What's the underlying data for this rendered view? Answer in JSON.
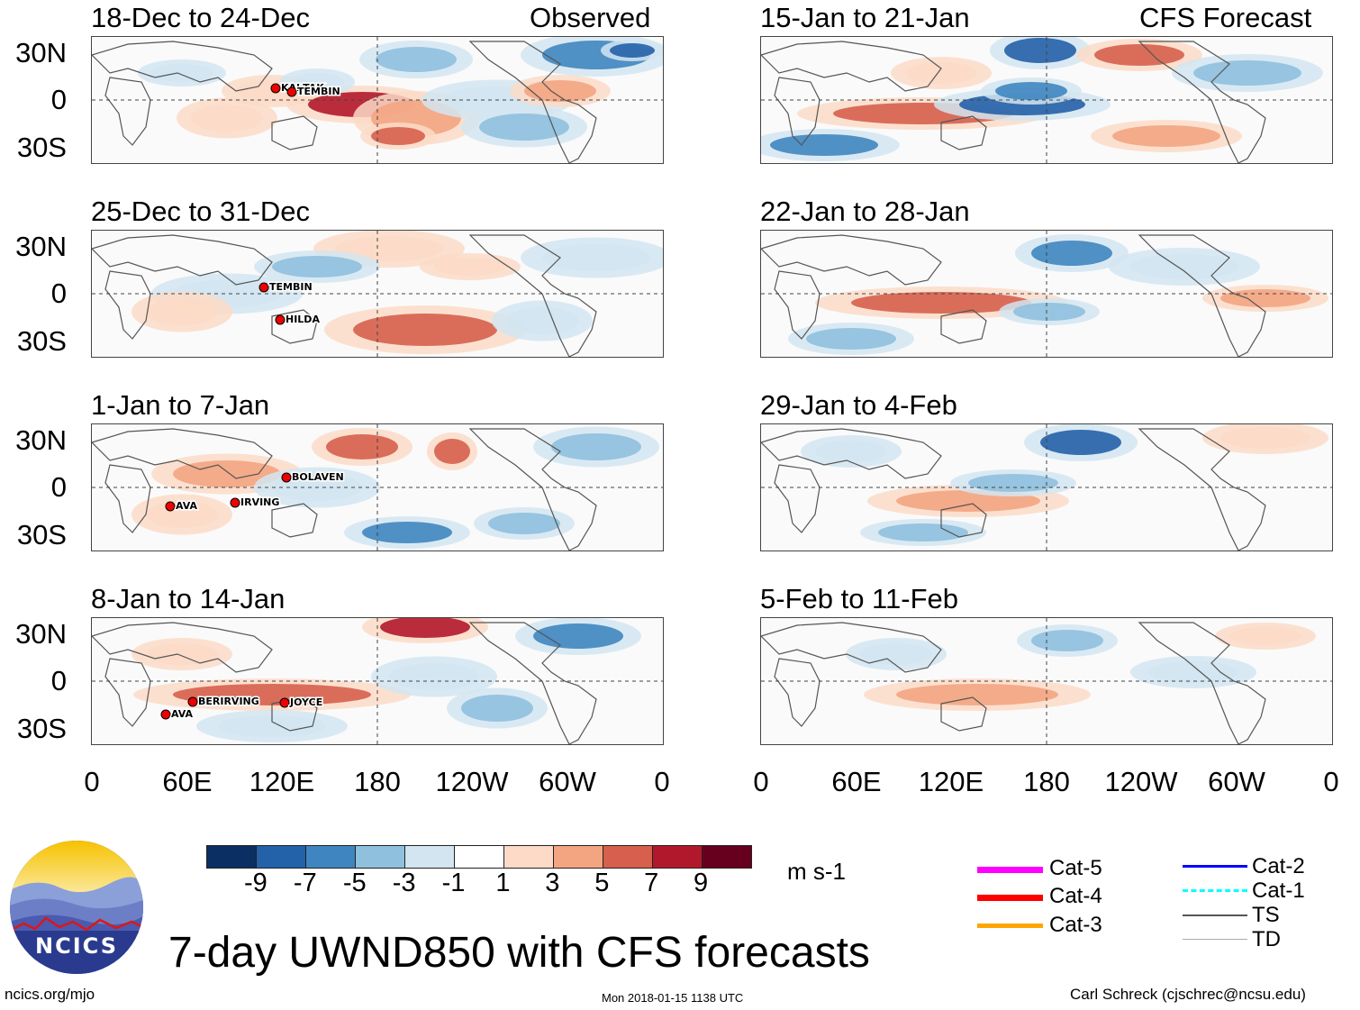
{
  "chart_data": {
    "type": "heatmap",
    "title": "7-day UWND850 with CFS forecasts",
    "variable": "UWND850",
    "units": "m s-1",
    "colorbar": {
      "tick_labels": [
        "-9",
        "-7",
        "-5",
        "-3",
        "-1",
        "1",
        "3",
        "5",
        "7",
        "9"
      ],
      "bins": [
        "< -9",
        "-9 to -7",
        "-7 to -5",
        "-5 to -3",
        "-3 to -1",
        "-1 to 1",
        "1 to 3",
        "3 to 5",
        "5 to 7",
        "7 to 9",
        "> 9"
      ],
      "colors": [
        "#0b2f62",
        "#2361a8",
        "#3f86c0",
        "#8fc0de",
        "#d2e5f1",
        "#ffffff",
        "#fcdac7",
        "#f3a582",
        "#d6604d",
        "#b2182b",
        "#67001f"
      ]
    },
    "x_ticks": [
      "0",
      "60E",
      "120E",
      "180",
      "120W",
      "60W",
      "0"
    ],
    "y_ticks": [
      "30N",
      "0",
      "30S"
    ],
    "left_column_label": "Observed",
    "right_column_label": "CFS Forecast",
    "panels_observed": [
      {
        "title": "18-Dec to 24-Dec",
        "storms": [
          "KAI-TAK",
          "TEMBIN"
        ]
      },
      {
        "title": "25-Dec to 31-Dec",
        "storms": [
          "TEMBIN",
          "HILDA"
        ]
      },
      {
        "title": "1-Jan to 7-Jan",
        "storms": [
          "BOLAVEN",
          "AVA",
          "IRVING"
        ]
      },
      {
        "title": "8-Jan to 14-Jan",
        "storms": [
          "BERIRVING",
          "AVA",
          "JOYCE"
        ]
      }
    ],
    "panels_forecast": [
      {
        "title": "15-Jan to 21-Jan"
      },
      {
        "title": "22-Jan to 28-Jan"
      },
      {
        "title": "29-Jan to 4-Feb"
      },
      {
        "title": "5-Feb to 11-Feb"
      }
    ]
  },
  "legend": {
    "items": [
      {
        "label": "Cat-5",
        "color": "#ff00ff"
      },
      {
        "label": "Cat-4",
        "color": "#ff0000"
      },
      {
        "label": "Cat-3",
        "color": "#ffa500"
      },
      {
        "label": "Cat-2",
        "color": "#0000ff"
      },
      {
        "label": "Cat-1",
        "color": "#00ffff"
      },
      {
        "label": "TS",
        "color": "#555555"
      },
      {
        "label": "TD",
        "color": "#aaaaaa"
      }
    ]
  },
  "logo": {
    "text": "NCICS"
  },
  "footer": {
    "url": "ncics.org/mjo",
    "timestamp": "Mon 2018-01-15 1138 UTC",
    "credit": "Carl Schreck (cjschrec@ncsu.edu)"
  }
}
